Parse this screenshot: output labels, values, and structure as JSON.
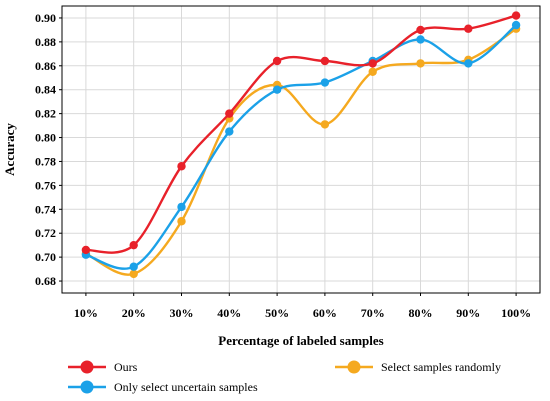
{
  "chart_data": {
    "type": "line",
    "title": "",
    "xlabel": "Percentage of labeled samples",
    "ylabel": "Accuracy",
    "categories": [
      "10%",
      "20%",
      "30%",
      "40%",
      "50%",
      "60%",
      "70%",
      "80%",
      "90%",
      "100%"
    ],
    "ylim": [
      0.67,
      0.91
    ],
    "yticks": [
      0.68,
      0.7,
      0.72,
      0.74,
      0.76,
      0.78,
      0.8,
      0.82,
      0.84,
      0.86,
      0.88,
      0.9
    ],
    "ytick_labels": [
      "0.68",
      "0.70",
      "0.72",
      "0.74",
      "0.76",
      "0.78",
      "0.80",
      "0.82",
      "0.84",
      "0.86",
      "0.88",
      "0.90"
    ],
    "grid": true,
    "legend_position": "bottom",
    "series": [
      {
        "name": "Ours",
        "color": "#e8212a",
        "values": [
          0.706,
          0.71,
          0.776,
          0.82,
          0.864,
          0.864,
          0.862,
          0.89,
          0.891,
          0.902
        ]
      },
      {
        "name": "Select samples randomly",
        "color": "#f5a91f",
        "values": [
          0.703,
          0.686,
          0.73,
          0.816,
          0.844,
          0.811,
          0.855,
          0.862,
          0.865,
          0.891
        ]
      },
      {
        "name": "Only select uncertain samples",
        "color": "#1ba1e8",
        "values": [
          0.702,
          0.692,
          0.742,
          0.805,
          0.84,
          0.846,
          0.864,
          0.882,
          0.862,
          0.894
        ]
      }
    ]
  }
}
